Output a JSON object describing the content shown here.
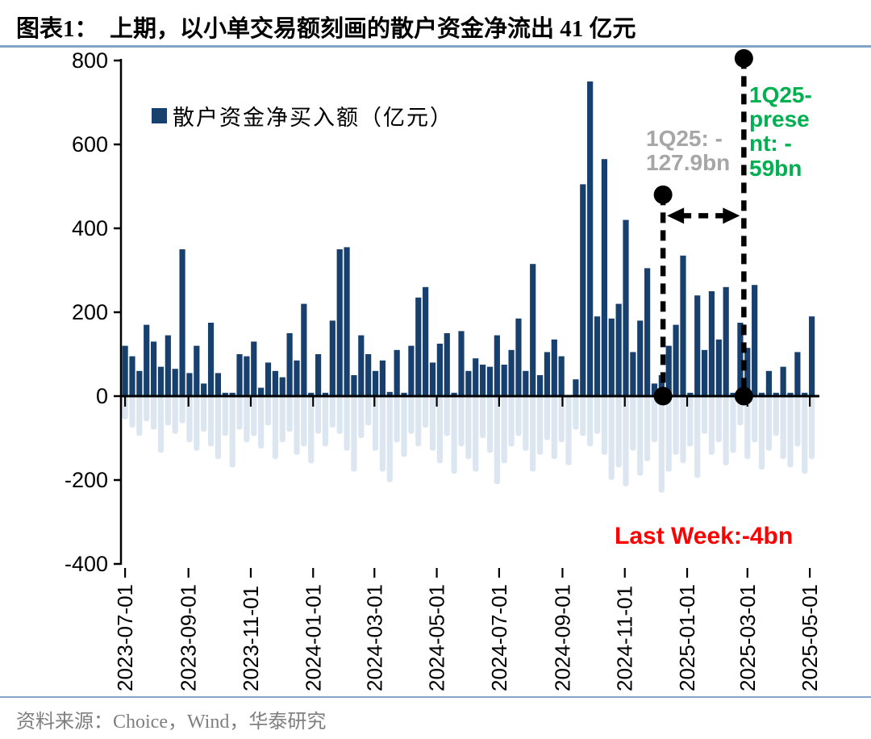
{
  "title": "图表1：  上期，以小单交易额刻画的散户资金净流出 41 亿元",
  "legend": {
    "label": "散户资金净买入额（亿元）"
  },
  "footer": {
    "source": "资料来源：Choice，Wind，华泰研究"
  },
  "colors": {
    "bar_positive": "#17406F",
    "bar_negative": "#DCE6F1",
    "rule_blue": "#84A1C6",
    "axis_black": "#000000",
    "annotation_gray": "#A6A6A6",
    "annotation_green": "#00B050",
    "annotation_red": "#FF0000"
  },
  "annotations": {
    "q1_gray": {
      "text": "1Q25: -127.9bn",
      "lines": [
        "1Q25: -",
        "127.9bn"
      ],
      "color": "#A6A6A6"
    },
    "q1_green": {
      "text": "1Q25-present: -59bn",
      "lines": [
        "1Q25-",
        "prese",
        "nt: -",
        "59bn"
      ],
      "color": "#00B050"
    },
    "last_week": {
      "text": "Last Week:-4bn",
      "color": "#FF0000"
    }
  },
  "chart_data": {
    "type": "bar",
    "title": "散户资金净买入额（亿元）",
    "ylabel": "",
    "xlabel": "",
    "ylim": [
      -400,
      800
    ],
    "yticks": [
      800,
      600,
      400,
      200,
      0,
      -200,
      -400
    ],
    "grid": false,
    "legend_position": "top-left",
    "x_start_week": "2023-07-03",
    "x_interval": "weekly",
    "xtick_labels": [
      "2023-07-01",
      "2023-09-01",
      "2023-11-01",
      "2024-01-01",
      "2024-03-01",
      "2024-05-01",
      "2024-07-01",
      "2024-09-01",
      "2024-11-01",
      "2025-01-01",
      "2025-03-01",
      "2025-05-01"
    ],
    "xtick_day_offsets": [
      0,
      62,
      123,
      184,
      244,
      305,
      366,
      428,
      489,
      550,
      609,
      670
    ],
    "series": [
      {
        "name": "散户资金净买入额-正值（亿元）",
        "color": "#17406F",
        "values": [
          120,
          95,
          60,
          170,
          130,
          70,
          145,
          65,
          350,
          55,
          120,
          30,
          175,
          55,
          8,
          8,
          100,
          95,
          130,
          20,
          80,
          60,
          45,
          150,
          85,
          220,
          8,
          100,
          8,
          180,
          350,
          355,
          50,
          145,
          100,
          60,
          85,
          10,
          110,
          8,
          120,
          235,
          260,
          80,
          125,
          150,
          8,
          155,
          60,
          90,
          75,
          70,
          145,
          75,
          110,
          185,
          60,
          315,
          50,
          105,
          135,
          95,
          0,
          40,
          505,
          750,
          190,
          565,
          185,
          220,
          420,
          105,
          180,
          305,
          30,
          50,
          120,
          170,
          335,
          8,
          240,
          110,
          250,
          135,
          260,
          8,
          175,
          115,
          265,
          8,
          60,
          8,
          70,
          8,
          105,
          8,
          190
        ]
      },
      {
        "name": "散户资金净买入额-负值（亿元）",
        "color": "#DCE6F1",
        "values": [
          -55,
          -75,
          -95,
          -60,
          -80,
          -135,
          -70,
          -90,
          -65,
          -110,
          -130,
          -85,
          -120,
          -150,
          -95,
          -170,
          -80,
          -110,
          -95,
          -125,
          -70,
          -150,
          -110,
          -85,
          -140,
          -120,
          -160,
          -90,
          -120,
          -75,
          -90,
          -130,
          -180,
          -100,
          -70,
          -130,
          -180,
          -205,
          -110,
          -145,
          -90,
          -120,
          -75,
          -130,
          -160,
          -95,
          -185,
          -120,
          -150,
          -180,
          -100,
          -135,
          -210,
          -160,
          -120,
          -95,
          -130,
          -180,
          -140,
          -105,
          -150,
          -110,
          -165,
          -80,
          -95,
          -120,
          -90,
          -140,
          -200,
          -170,
          -215,
          -130,
          -190,
          -155,
          -110,
          -230,
          -180,
          -140,
          -160,
          -120,
          -195,
          -90,
          -140,
          -110,
          -165,
          -135,
          -70,
          -150,
          -110,
          -175,
          -130,
          -95,
          -150,
          -170,
          -120,
          -185,
          -150
        ]
      }
    ],
    "marker_lines": [
      {
        "name": "1Q25-line",
        "week_index": 75.2,
        "top_value": 480,
        "bottom_value": 0
      },
      {
        "name": "1Q25-present-line",
        "week_index": 86.5,
        "top_value": 805,
        "bottom_value": 0
      }
    ],
    "arrow": {
      "between_lines": true,
      "value": 430
    }
  }
}
